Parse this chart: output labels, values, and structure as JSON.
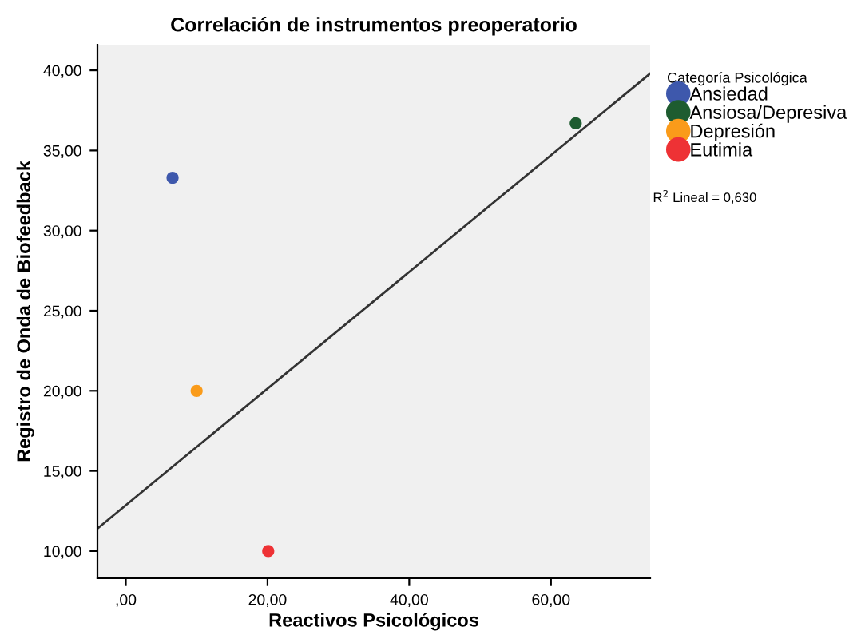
{
  "chart_data": {
    "type": "scatter",
    "title": "Correlación de instrumentos preoperatorio",
    "xlabel": "Reactivos Psicológicos",
    "ylabel": "Registro de Onda de Biofeedback",
    "legend_title": "Categoría Psicológica",
    "legend": "right",
    "grid": false,
    "marker": "circle",
    "xlim": [
      -4,
      74
    ],
    "ylim": [
      8.3,
      41.6
    ],
    "xticks": [
      {
        "value": 0,
        "label": ",00"
      },
      {
        "value": 20,
        "label": "20,00"
      },
      {
        "value": 40,
        "label": "40,00"
      },
      {
        "value": 60,
        "label": "60,00"
      }
    ],
    "yticks": [
      {
        "value": 10,
        "label": "10,00"
      },
      {
        "value": 15,
        "label": "15,00"
      },
      {
        "value": 20,
        "label": "20,00"
      },
      {
        "value": 25,
        "label": "25,00"
      },
      {
        "value": 30,
        "label": "30,00"
      },
      {
        "value": 35,
        "label": "35,00"
      },
      {
        "value": 40,
        "label": "40,00"
      }
    ],
    "series": [
      {
        "name": "Ansiedad",
        "color": "#3e58ac",
        "x": [
          6.6
        ],
        "values": [
          33.3
        ]
      },
      {
        "name": "Ansiosa/Depresiva",
        "color": "#1e5c30",
        "x": [
          63.5
        ],
        "values": [
          36.7
        ]
      },
      {
        "name": "Depresión",
        "color": "#fa9b1a",
        "x": [
          10.0
        ],
        "values": [
          20.0
        ]
      },
      {
        "name": "Eutimia",
        "color": "#ee3235",
        "x": [
          20.1
        ],
        "values": [
          10.0
        ]
      },
      {
        "type": "line",
        "marker": "none",
        "color": "#333333",
        "x": [
          -4,
          74
        ],
        "values": [
          11.4,
          39.8
        ]
      }
    ],
    "annotations": [
      "R$^{2}$ Lineal = 0,630"
    ]
  }
}
